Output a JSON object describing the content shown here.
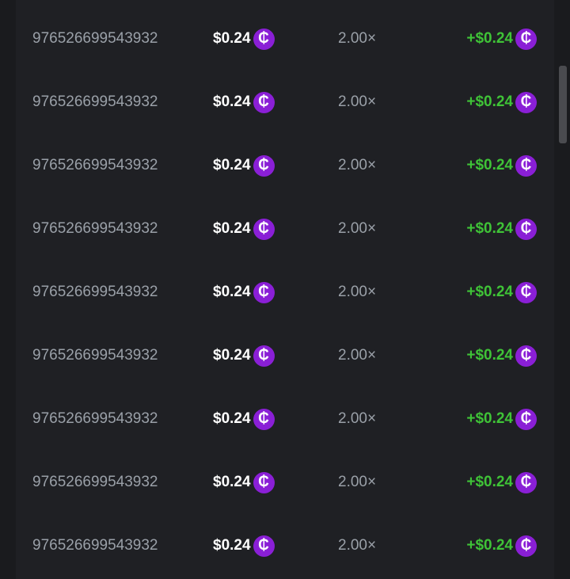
{
  "colors": {
    "background": "#1f2024",
    "payout": "#3fc337",
    "coin": "#8a1fd6"
  },
  "coin_icon": "cent-coin-icon",
  "rows": [
    {
      "id": "976526699543932",
      "bet": "$0.24",
      "multiplier": "2.00×",
      "payout": "+$0.24"
    },
    {
      "id": "976526699543932",
      "bet": "$0.24",
      "multiplier": "2.00×",
      "payout": "+$0.24"
    },
    {
      "id": "976526699543932",
      "bet": "$0.24",
      "multiplier": "2.00×",
      "payout": "+$0.24"
    },
    {
      "id": "976526699543932",
      "bet": "$0.24",
      "multiplier": "2.00×",
      "payout": "+$0.24"
    },
    {
      "id": "976526699543932",
      "bet": "$0.24",
      "multiplier": "2.00×",
      "payout": "+$0.24"
    },
    {
      "id": "976526699543932",
      "bet": "$0.24",
      "multiplier": "2.00×",
      "payout": "+$0.24"
    },
    {
      "id": "976526699543932",
      "bet": "$0.24",
      "multiplier": "2.00×",
      "payout": "+$0.24"
    },
    {
      "id": "976526699543932",
      "bet": "$0.24",
      "multiplier": "2.00×",
      "payout": "+$0.24"
    },
    {
      "id": "976526699543932",
      "bet": "$0.24",
      "multiplier": "2.00×",
      "payout": "+$0.24"
    }
  ],
  "coin_glyph": "₵"
}
